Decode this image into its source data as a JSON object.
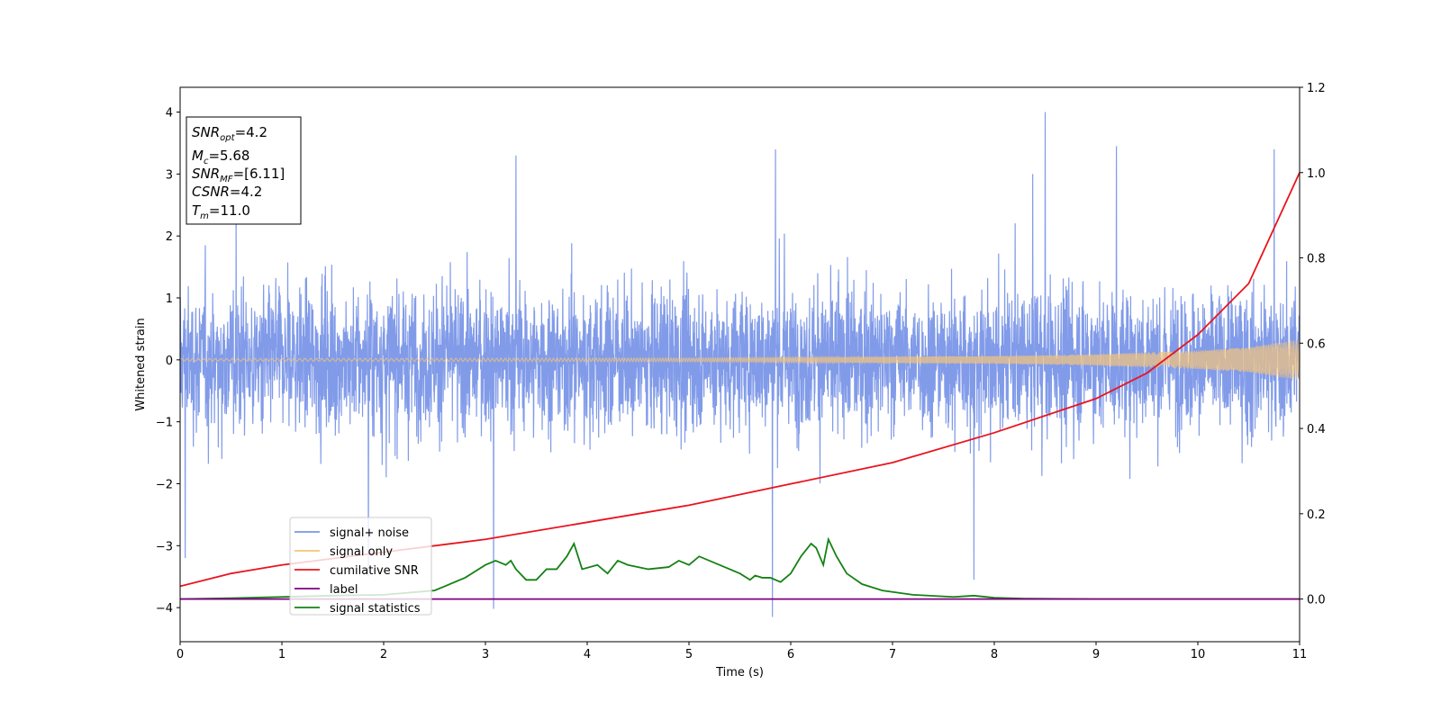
{
  "chart_data": {
    "type": "line",
    "title": "",
    "xlabel": "Time (s)",
    "ylabel": "Whitened strain",
    "xlim": [
      0,
      11
    ],
    "ylim": [
      -4.55,
      4.4
    ],
    "y2lim": [
      -0.1,
      1.2
    ],
    "grid": false,
    "legend_position": "lower-left",
    "xticks": [
      "0",
      "1",
      "2",
      "3",
      "4",
      "5",
      "6",
      "7",
      "8",
      "9",
      "10",
      "11"
    ],
    "xtick_values": [
      0,
      1,
      2,
      3,
      4,
      5,
      6,
      7,
      8,
      9,
      10,
      11
    ],
    "yticks": [
      "4",
      "3",
      "2",
      "1",
      "0",
      "−1",
      "−2",
      "−3",
      "−4"
    ],
    "ytick_values": [
      4,
      3,
      2,
      1,
      0,
      -1,
      -2,
      -3,
      -4
    ],
    "y2ticks": [
      "1.2",
      "1.0",
      "0.8",
      "0.6",
      "0.4",
      "0.2",
      "0.0"
    ],
    "y2tick_values": [
      1.2,
      1.0,
      0.8,
      0.6,
      0.4,
      0.2,
      0.0
    ],
    "info_box": {
      "snr_opt": {
        "main": "SNR",
        "sub": "opt",
        "value": "=4.2"
      },
      "mc": {
        "main": "M",
        "sub": "c",
        "value": "=5.68"
      },
      "snr_mf": {
        "main": "SNR",
        "sub": "MF",
        "value": "=[6.11]"
      },
      "csnr": {
        "main": "CSNR",
        "sub": "",
        "value": "=4.2"
      },
      "tm": {
        "main": "T",
        "sub": "m",
        "value": "=11.0"
      }
    },
    "series": [
      {
        "name": "signal+ noise",
        "color": "#7a96e8",
        "axis": "left",
        "kind": "noise",
        "typical_range": [
          -1.6,
          1.6
        ],
        "extreme_peaks": [
          {
            "x": 0.05,
            "y": -3.2
          },
          {
            "x": 0.55,
            "y": 2.5
          },
          {
            "x": 1.85,
            "y": -3.5
          },
          {
            "x": 3.08,
            "y": -4.02
          },
          {
            "x": 3.3,
            "y": 3.3
          },
          {
            "x": 5.82,
            "y": -4.15
          },
          {
            "x": 5.85,
            "y": 3.4
          },
          {
            "x": 7.8,
            "y": -3.55
          },
          {
            "x": 8.5,
            "y": 4.0
          },
          {
            "x": 9.2,
            "y": 3.45
          },
          {
            "x": 10.75,
            "y": 3.4
          }
        ]
      },
      {
        "name": "signal only",
        "color": "#f5c57a",
        "axis": "left",
        "kind": "chirp",
        "amplitude_envelope": {
          "x": [
            0,
            5,
            8,
            9,
            10,
            10.5,
            11
          ],
          "y": [
            0.02,
            0.03,
            0.06,
            0.09,
            0.15,
            0.2,
            0.33
          ]
        }
      },
      {
        "name": "cumilative SNR",
        "color": "#e8141e",
        "axis": "right",
        "x": [
          0,
          0.5,
          1,
          2,
          3,
          4,
          5,
          6,
          7,
          8,
          9,
          9.5,
          10,
          10.5,
          11
        ],
        "y": [
          0.03,
          0.06,
          0.08,
          0.11,
          0.14,
          0.18,
          0.22,
          0.27,
          0.32,
          0.39,
          0.47,
          0.53,
          0.62,
          0.74,
          1.0
        ]
      },
      {
        "name": "label",
        "color": "#800080",
        "axis": "right",
        "x": [
          0,
          11
        ],
        "y": [
          0.0,
          0.0
        ]
      },
      {
        "name": "signal statistics",
        "color": "#148214",
        "axis": "right",
        "x": [
          0,
          0.5,
          1,
          1.5,
          2,
          2.5,
          2.6,
          2.8,
          3,
          3.1,
          3.2,
          3.25,
          3.3,
          3.4,
          3.5,
          3.6,
          3.7,
          3.8,
          3.87,
          3.95,
          4.1,
          4.2,
          4.3,
          4.4,
          4.6,
          4.8,
          4.9,
          5.0,
          5.1,
          5.3,
          5.5,
          5.6,
          5.65,
          5.72,
          5.8,
          5.9,
          6.0,
          6.1,
          6.2,
          6.25,
          6.32,
          6.37,
          6.45,
          6.55,
          6.7,
          6.9,
          7.2,
          7.6,
          7.8,
          8.0,
          8.3,
          9,
          10,
          11
        ],
        "y": [
          0.0,
          0.002,
          0.005,
          0.008,
          0.01,
          0.02,
          0.03,
          0.05,
          0.08,
          0.09,
          0.08,
          0.09,
          0.07,
          0.045,
          0.045,
          0.07,
          0.07,
          0.1,
          0.13,
          0.07,
          0.08,
          0.06,
          0.09,
          0.08,
          0.07,
          0.075,
          0.09,
          0.08,
          0.1,
          0.08,
          0.06,
          0.045,
          0.055,
          0.05,
          0.05,
          0.04,
          0.06,
          0.1,
          0.13,
          0.12,
          0.08,
          0.14,
          0.1,
          0.06,
          0.035,
          0.02,
          0.01,
          0.005,
          0.008,
          0.003,
          0.001,
          0.0,
          0.0,
          0.0
        ]
      }
    ]
  }
}
